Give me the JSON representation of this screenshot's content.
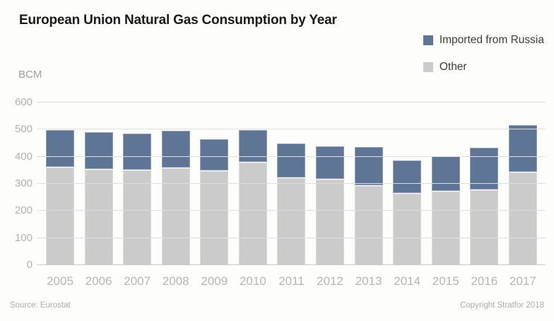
{
  "title": "European Union Natural Gas Consumption by Year",
  "unit_label": "BCM",
  "legend": {
    "items": [
      {
        "label": "Imported from Russia",
        "color": "#5f7596"
      },
      {
        "label": "Other",
        "color": "#cbcbcb"
      }
    ]
  },
  "footer": {
    "source": "Source: Eurostat",
    "copyright": "Copyright Stratfor 2018"
  },
  "colors": {
    "imported_from_russia": "#5f7596",
    "other": "#cbcbcb",
    "background": "#fdfdfb",
    "gridline": "#dedede",
    "axis_text": "#b0b0b0",
    "title_text": "#1a1a1a"
  },
  "chart_data": {
    "type": "bar",
    "stacked": true,
    "title": "European Union Natural Gas Consumption by Year",
    "ylabel": "BCM",
    "xlabel": "",
    "ylim": [
      0,
      600
    ],
    "yticks": [
      0,
      100,
      200,
      300,
      400,
      500,
      600
    ],
    "grid": true,
    "legend_position": "top-right",
    "categories": [
      "2005",
      "2006",
      "2007",
      "2008",
      "2009",
      "2010",
      "2011",
      "2012",
      "2013",
      "2014",
      "2015",
      "2016",
      "2017"
    ],
    "series": [
      {
        "name": "Other",
        "color": "#cbcbcb",
        "stack_order": "bottom",
        "values": [
          360,
          353,
          349,
          358,
          347,
          378,
          320,
          316,
          292,
          263,
          271,
          276,
          342
        ]
      },
      {
        "name": "Imported from Russia",
        "color": "#5f7596",
        "stack_order": "top",
        "values": [
          136,
          136,
          134,
          136,
          114,
          117,
          126,
          120,
          141,
          120,
          127,
          154,
          173
        ]
      }
    ],
    "totals": [
      496,
      489,
      483,
      494,
      461,
      495,
      446,
      436,
      433,
      383,
      398,
      430,
      515
    ]
  }
}
